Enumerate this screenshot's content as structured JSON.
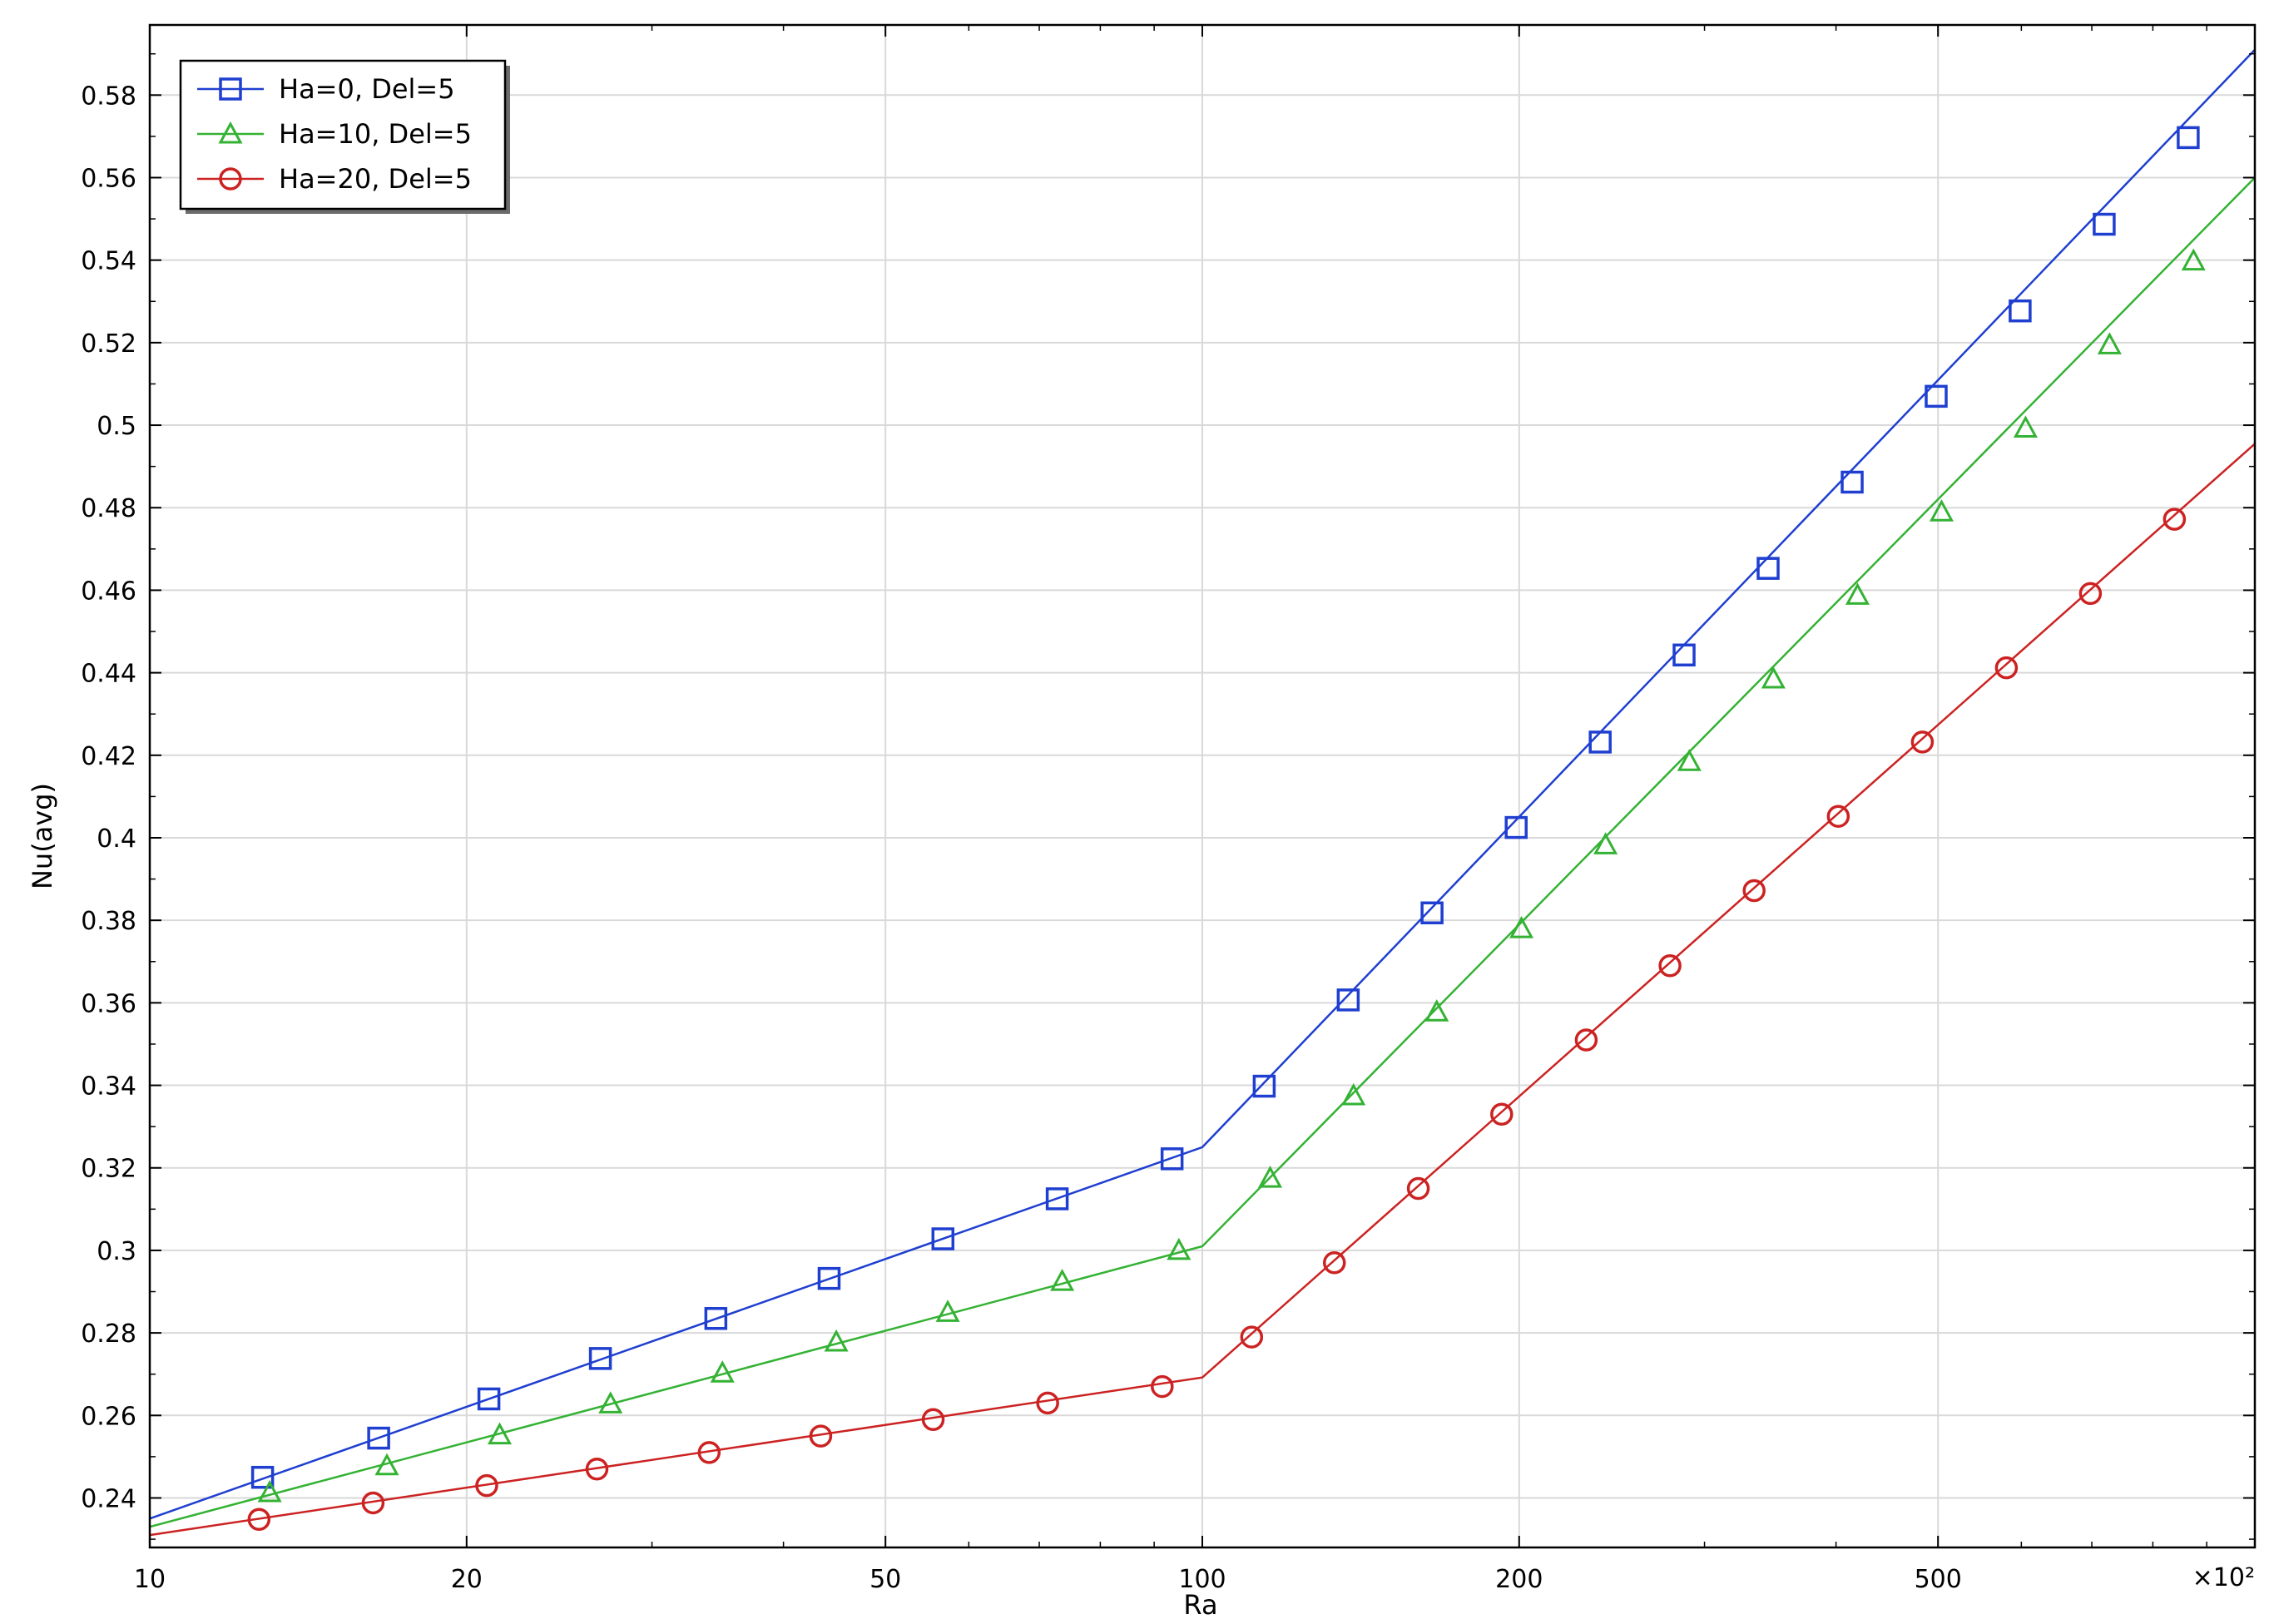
{
  "chart_data": {
    "type": "line",
    "xlabel": "Ra",
    "ylabel": "Nu(avg)",
    "x_scale": "log",
    "x_multiplier": "×10²",
    "xlim": [
      10,
      1000
    ],
    "ylim": [
      0.228,
      0.597
    ],
    "x_ticks": [
      10,
      20,
      50,
      100,
      200,
      500
    ],
    "x_tick_labels": [
      "10",
      "20",
      "50",
      "100",
      "200",
      "500"
    ],
    "y_ticks": [
      0.24,
      0.26,
      0.28,
      0.3,
      0.32,
      0.34,
      0.36,
      0.38,
      0.4,
      0.42,
      0.44,
      0.46,
      0.48,
      0.5,
      0.52,
      0.54,
      0.56,
      0.58
    ],
    "y_tick_labels": [
      "0.24",
      "0.26",
      "0.28",
      "0.3",
      "0.32",
      "0.34",
      "0.36",
      "0.38",
      "0.4",
      "0.42",
      "0.44",
      "0.46",
      "0.48",
      "0.5",
      "0.52",
      "0.54",
      "0.56",
      "0.58"
    ],
    "grid": true,
    "legend_position": "top-left",
    "series": [
      {
        "name": "Ha=0, Del=5",
        "color": "#1f3fd0",
        "marker": "square",
        "line": {
          "x": [
            10,
            100,
            1000
          ],
          "y": [
            0.235,
            0.325,
            0.591
          ]
        },
        "markers": {
          "x": [
            12.8,
            16.5,
            21.0,
            26.8,
            34.5,
            44.2,
            56.7,
            72.8,
            93.6,
            114.5,
            137.6,
            165.3,
            198.7,
            238.8,
            286.9,
            344.8,
            414.4,
            498.0,
            598.4,
            719.2,
            864.3
          ],
          "y": [
            0.245,
            0.2545,
            0.264,
            0.2738,
            0.2835,
            0.2932,
            0.3028,
            0.3125,
            0.3222,
            0.3398,
            0.3607,
            0.3818,
            0.4025,
            0.4232,
            0.4443,
            0.4653,
            0.4862,
            0.507,
            0.5277,
            0.5487,
            0.5697
          ]
        }
      },
      {
        "name": "Ha=10, Del=5",
        "color": "#33b233",
        "marker": "triangle",
        "line": {
          "x": [
            10,
            100,
            1000
          ],
          "y": [
            0.233,
            0.301,
            0.56
          ]
        },
        "markers": {
          "x": [
            13.0,
            16.8,
            21.5,
            27.4,
            35.0,
            44.9,
            57.3,
            73.6,
            95.0,
            116.0,
            139.2,
            167.0,
            201.0,
            241.6,
            290.2,
            348.8,
            419.3,
            503.9,
            605.6,
            727.7,
            874.4
          ],
          "y": [
            0.2413,
            0.2478,
            0.2553,
            0.2628,
            0.2703,
            0.2778,
            0.285,
            0.2925,
            0.3,
            0.3175,
            0.3375,
            0.3578,
            0.378,
            0.3983,
            0.4185,
            0.4385,
            0.4588,
            0.479,
            0.4993,
            0.5195,
            0.5398
          ]
        }
      },
      {
        "name": "Ha=20, Del=5",
        "color": "#cc2222",
        "marker": "circle",
        "line": {
          "x": [
            10,
            100,
            1000
          ],
          "y": [
            0.231,
            0.2692,
            0.4955
          ]
        },
        "markers": {
          "x": [
            12.7,
            16.3,
            20.9,
            26.6,
            34.0,
            43.4,
            55.5,
            71.3,
            91.6,
            111.4,
            133.5,
            160.4,
            192.5,
            231.6,
            278.2,
            334.4,
            402.0,
            483.2,
            580.7,
            697.9,
            838.7
          ],
          "y": [
            0.2348,
            0.2388,
            0.243,
            0.247,
            0.251,
            0.255,
            0.259,
            0.263,
            0.267,
            0.279,
            0.297,
            0.315,
            0.333,
            0.351,
            0.369,
            0.3872,
            0.4052,
            0.4232,
            0.4412,
            0.4592,
            0.4772
          ]
        }
      }
    ]
  }
}
